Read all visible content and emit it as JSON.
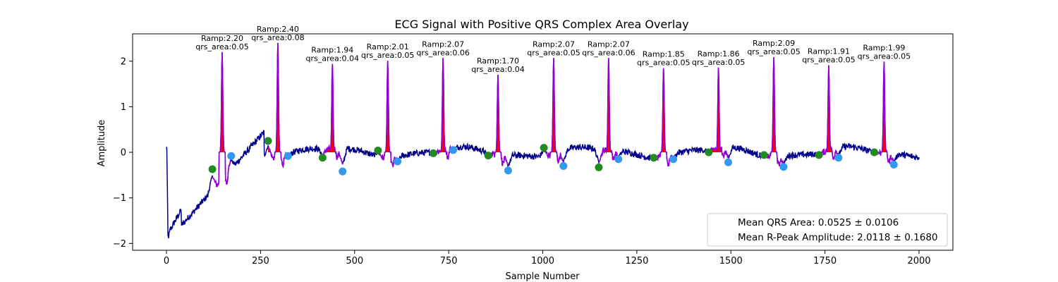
{
  "chart_data": {
    "type": "line",
    "title": "ECG Signal with Positive QRS Complex Area Overlay",
    "xlabel": "Sample Number",
    "ylabel": "Amplitude",
    "xlim": [
      -90,
      2090
    ],
    "ylim": [
      -2.15,
      2.6
    ],
    "xticks": [
      0,
      250,
      500,
      750,
      1000,
      1250,
      1500,
      1750,
      2000
    ],
    "yticks": [
      -2,
      -1,
      0,
      1,
      2
    ],
    "ytick_labels": [
      "−2",
      "−1",
      "0",
      "1",
      "2"
    ],
    "colors": {
      "signal": "#00008b",
      "qrs_segment": "#9400d3",
      "qrs_area": "#ff0000",
      "onset_marker": "#228b22",
      "offset_marker": "#3399ee"
    },
    "peaks": [
      {
        "x": 148,
        "ramp": 2.2,
        "label": "Ramp:2.20",
        "area_label": "qrs_area:0.05",
        "onset": [
          122,
          -0.37
        ],
        "offset": [
          172,
          -0.08
        ]
      },
      {
        "x": 296,
        "ramp": 2.4,
        "label": "Ramp:2.40",
        "area_label": "qrs_area:0.08",
        "onset": [
          270,
          0.25
        ],
        "offset": [
          323,
          -0.08
        ]
      },
      {
        "x": 441,
        "ramp": 1.94,
        "label": "Ramp:1.94",
        "area_label": "qrs_area:0.04",
        "onset": [
          415,
          -0.12
        ],
        "offset": [
          468,
          -0.42
        ]
      },
      {
        "x": 588,
        "ramp": 2.01,
        "label": "Ramp:2.01",
        "area_label": "qrs_area:0.05",
        "onset": [
          562,
          0.04
        ],
        "offset": [
          614,
          -0.2
        ]
      },
      {
        "x": 735,
        "ramp": 2.07,
        "label": "Ramp:2.07",
        "area_label": "qrs_area:0.06",
        "onset": [
          709,
          -0.02
        ],
        "offset": [
          762,
          0.05
        ]
      },
      {
        "x": 881,
        "ramp": 1.7,
        "label": "Ramp:1.70",
        "area_label": "qrs_area:0.04",
        "onset": [
          855,
          -0.07
        ],
        "offset": [
          908,
          -0.4
        ]
      },
      {
        "x": 1029,
        "ramp": 2.07,
        "label": "Ramp:2.07",
        "area_label": "qrs_area:0.05",
        "onset": [
          1003,
          0.1
        ],
        "offset": [
          1055,
          -0.3
        ]
      },
      {
        "x": 1175,
        "ramp": 2.07,
        "label": "Ramp:2.07",
        "area_label": "qrs_area:0.06",
        "onset": [
          1149,
          -0.33
        ],
        "offset": [
          1201,
          -0.15
        ]
      },
      {
        "x": 1321,
        "ramp": 1.85,
        "label": "Ramp:1.85",
        "area_label": "qrs_area:0.05",
        "onset": [
          1295,
          -0.12
        ],
        "offset": [
          1347,
          -0.15
        ]
      },
      {
        "x": 1467,
        "ramp": 1.86,
        "label": "Ramp:1.86",
        "area_label": "qrs_area:0.05",
        "onset": [
          1441,
          0.0
        ],
        "offset": [
          1493,
          -0.22
        ]
      },
      {
        "x": 1614,
        "ramp": 2.09,
        "label": "Ramp:2.09",
        "area_label": "qrs_area:0.05",
        "onset": [
          1588,
          -0.06
        ],
        "offset": [
          1640,
          -0.32
        ]
      },
      {
        "x": 1760,
        "ramp": 1.91,
        "label": "Ramp:1.91",
        "area_label": "qrs_area:0.05",
        "onset": [
          1734,
          -0.06
        ],
        "offset": [
          1786,
          -0.12
        ]
      },
      {
        "x": 1907,
        "ramp": 1.99,
        "label": "Ramp:1.99",
        "area_label": "qrs_area:0.05",
        "onset": [
          1881,
          0.0
        ],
        "offset": [
          1933,
          -0.27
        ]
      }
    ],
    "legend": {
      "placement": "lower-right",
      "entries": [
        "Mean QRS Area: 0.0525 ± 0.0106",
        "Mean R-Peak Amplitude: 2.0118 ± 0.1680"
      ]
    }
  }
}
